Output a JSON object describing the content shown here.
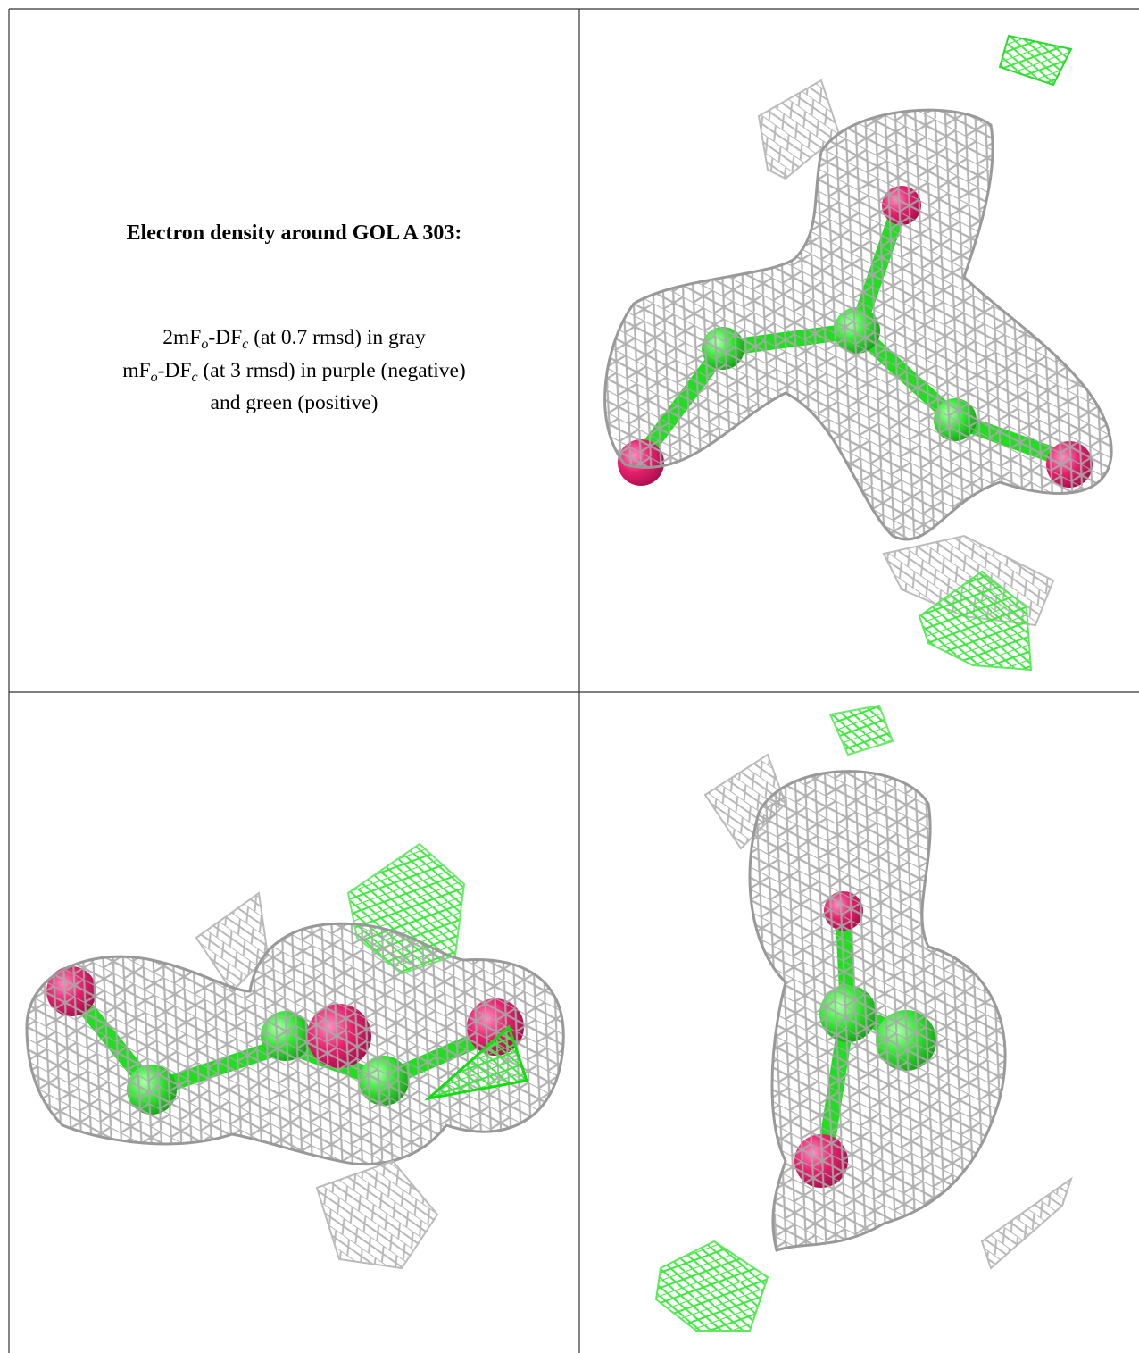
{
  "caption": {
    "title": "Electron density around GOL A 303:",
    "lines": [
      [
        "2mF",
        "o",
        "-DF",
        "c",
        " (at 0.7 rmsd) in gray"
      ],
      [
        "mF",
        "o",
        "-DF",
        "c",
        " (at 3 rmsd) in purple (negative)"
      ],
      [
        "and green (positive)"
      ]
    ]
  }
}
